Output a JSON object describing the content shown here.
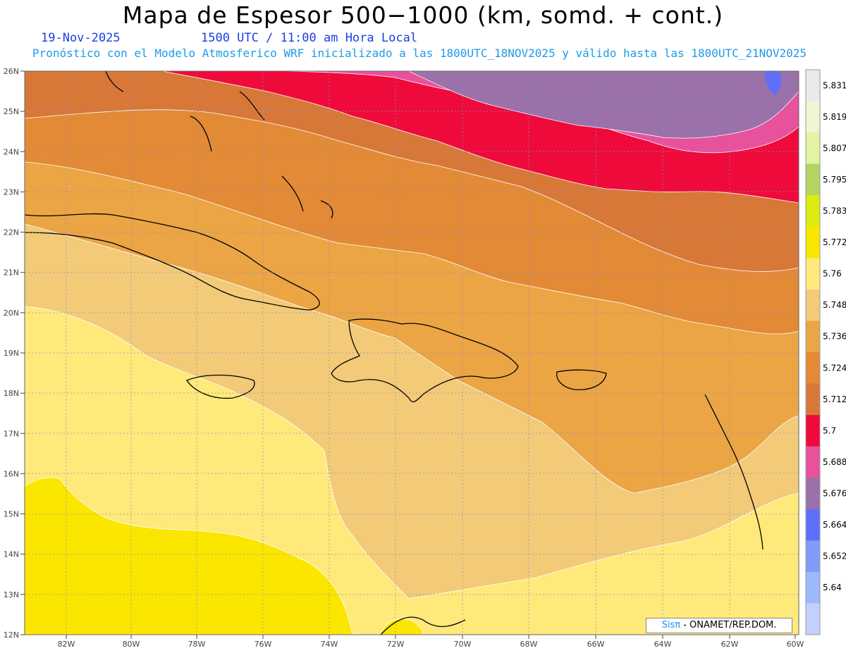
{
  "title": "Mapa de Espesor 500−1000 (km, somd. + cont.)",
  "date": "19-Nov-2025",
  "time": "1500 UTC / 11:00 am Hora Local",
  "forecast_note": "Pronóstico con el Modelo Atmosferico WRF inicializado a las 1800UTC_18NOV2025 y válido hasta las  1800UTC_21NOV2025",
  "credit_brand": "Sisπ",
  "credit_text": " - ONAMET/REP.DOM.",
  "lat_labels": [
    "26N",
    "25N",
    "24N",
    "23N",
    "22N",
    "21N",
    "20N",
    "19N",
    "18N",
    "17N",
    "16N",
    "15N",
    "14N",
    "13N",
    "12N"
  ],
  "lon_labels": [
    "82W",
    "80W",
    "78W",
    "76W",
    "74W",
    "72W",
    "70W",
    "68W",
    "66W",
    "64W",
    "62W",
    "60W"
  ],
  "colorbar": {
    "labels": [
      "5.831",
      "5.819",
      "5.807",
      "5.795",
      "5.783",
      "5.772",
      "5.76",
      "5.748",
      "5.736",
      "5.724",
      "5.712",
      "5.7",
      "5.688",
      "5.676",
      "5.664",
      "5.652",
      "5.64"
    ],
    "colors": [
      "#eaeaea",
      "#f1f5d2",
      "#e2f3a2",
      "#b3d363",
      "#dcec10",
      "#fbe600",
      "#ffe97a",
      "#f2ca78",
      "#eba544",
      "#e38a36",
      "#d87838",
      "#ef0a3c",
      "#e8529c",
      "#9a71a8",
      "#5f6ff9",
      "#7f9cf9",
      "#9db8fb",
      "#c2d0fb"
    ]
  },
  "bands": [
    {
      "level": "5.688-5.7",
      "color": "#9a71a8"
    },
    {
      "level": "5.7-5.712",
      "color": "#e8529c"
    },
    {
      "level": "5.712-5.724",
      "color": "#ef0a3c"
    },
    {
      "level": "5.724-5.736",
      "color": "#d87838"
    },
    {
      "level": "5.736-5.748",
      "color": "#e38a36"
    },
    {
      "level": "5.748-5.76",
      "color": "#eba544"
    },
    {
      "level": "5.76-5.772",
      "color": "#f2ca78"
    },
    {
      "level": "5.772-5.783",
      "color": "#ffe97a"
    },
    {
      "level": "5.783-5.795",
      "color": "#fbe600"
    }
  ]
}
